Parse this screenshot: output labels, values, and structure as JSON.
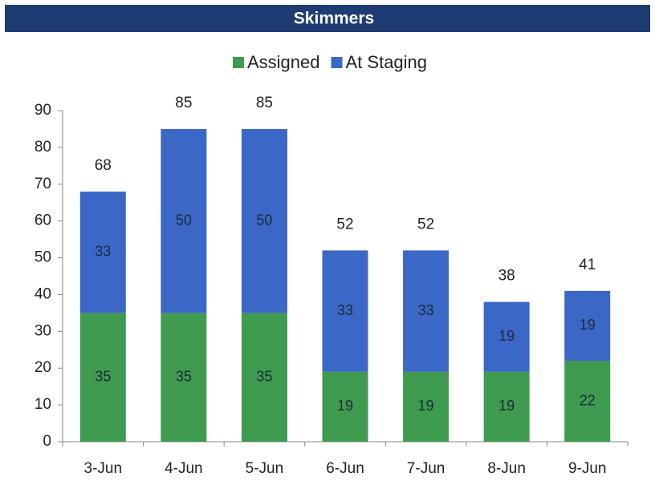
{
  "chart_data": {
    "type": "stacked_bar",
    "title": "Skimmers",
    "categories": [
      "3-Jun",
      "4-Jun",
      "5-Jun",
      "6-Jun",
      "7-Jun",
      "8-Jun",
      "9-Jun"
    ],
    "series": [
      {
        "name": "Assigned",
        "color": "#3e9b4f",
        "values": [
          35,
          35,
          35,
          19,
          19,
          19,
          22
        ]
      },
      {
        "name": "At Staging",
        "color": "#3b68c6",
        "values": [
          33,
          50,
          50,
          33,
          33,
          19,
          19
        ]
      }
    ],
    "total_labels": [
      "68",
      "85",
      "85",
      "52",
      "52",
      "38",
      "41"
    ],
    "ylim": [
      0,
      90
    ],
    "yticks": [
      0,
      10,
      20,
      30,
      40,
      50,
      60,
      70,
      80,
      90
    ],
    "legend": "top"
  }
}
